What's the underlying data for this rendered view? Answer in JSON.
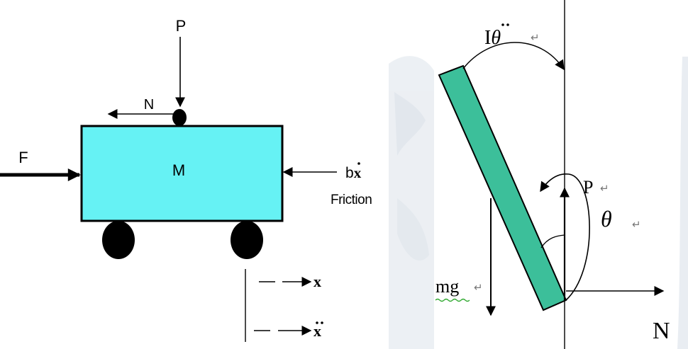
{
  "cart_diagram": {
    "labels": {
      "force_top": "P",
      "force_normal": "N",
      "force_applied": "F",
      "mass": "M",
      "friction_term": "b",
      "friction_term_var": "x",
      "friction_label": "Friction",
      "position_var": "x",
      "acceleration_var": "x"
    }
  },
  "pendulum_diagram": {
    "labels": {
      "inertia_torque_prefix": "I",
      "inertia_torque_var": "θ",
      "force_vertical": "P",
      "angle": "θ",
      "gravity": "mg",
      "force_horizontal": "N"
    },
    "return_mark": "↵"
  },
  "colors": {
    "cart_fill": "#66f2f4",
    "rod_fill": "#3cbf9a",
    "ink": "#000000",
    "mg_underline": "#33aa33",
    "backdrop_blotch": "#e4e9ef"
  },
  "icons": {
    "return_mark": "carriage-return-icon"
  }
}
